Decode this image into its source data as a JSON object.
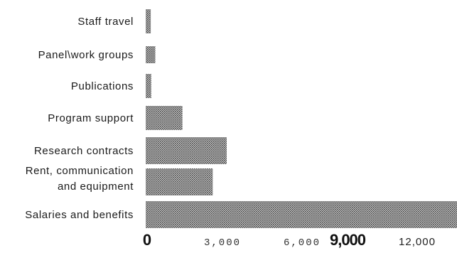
{
  "chart_data": {
    "type": "bar",
    "orientation": "horizontal",
    "categories": [
      "Staff travel",
      "Panel\\work groups",
      "Publications",
      "Program support",
      "Research contracts",
      "Rent, communication and equipment",
      "Salaries and benefits"
    ],
    "category_lines": [
      [
        "Staff travel"
      ],
      [
        "Panel\\work groups"
      ],
      [
        "Publications"
      ],
      [
        "Program support"
      ],
      [
        "Research contracts"
      ],
      [
        "Rent, communication",
        "and equipment"
      ],
      [
        "Salaries and benefits"
      ]
    ],
    "values": [
      200,
      380,
      220,
      1450,
      3200,
      2650,
      12300
    ],
    "xlim": [
      0,
      12300
    ],
    "ticks": [
      {
        "value": 0,
        "label": "0"
      },
      {
        "value": 3000,
        "label": "3,000"
      },
      {
        "value": 6000,
        "label": "6,000"
      },
      {
        "value": 9000,
        "label": "9,000"
      },
      {
        "value": 12000,
        "label": "12,000"
      }
    ],
    "title": "",
    "xlabel": "",
    "ylabel": "",
    "grid": false,
    "legend": "none",
    "bar_color": "#8a8a8a"
  }
}
